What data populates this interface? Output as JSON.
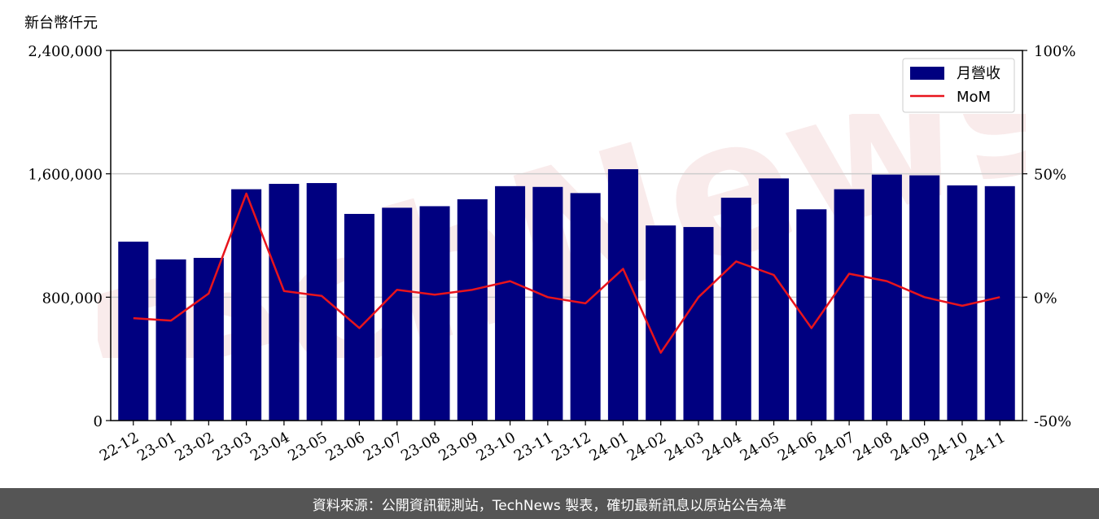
{
  "unit_label": "新台幣仟元",
  "footer_text": "資料來源：公開資訊觀測站，TechNews 製表，確切最新訊息以原站公告為準",
  "watermark_text": "TechNews",
  "colors": {
    "bar": "#000080",
    "line": "#e8141c",
    "grid": "#cccccc",
    "footer_bg": "#555555"
  },
  "chart_data": {
    "type": "bar",
    "categories": [
      "22-12",
      "23-01",
      "23-02",
      "23-03",
      "23-04",
      "23-05",
      "23-06",
      "23-07",
      "23-08",
      "23-09",
      "23-10",
      "23-11",
      "23-12",
      "24-01",
      "24-02",
      "24-03",
      "24-04",
      "24-05",
      "24-06",
      "24-07",
      "24-08",
      "24-09",
      "24-10",
      "24-11"
    ],
    "series": [
      {
        "name": "月營收",
        "type": "bar",
        "axis": "left",
        "values": [
          1160000,
          1045000,
          1055000,
          1500000,
          1535000,
          1540000,
          1340000,
          1380000,
          1390000,
          1435000,
          1520000,
          1515000,
          1475000,
          1630000,
          1265000,
          1255000,
          1445000,
          1570000,
          1370000,
          1500000,
          1595000,
          1590000,
          1525000,
          1520000
        ]
      },
      {
        "name": "MoM",
        "type": "line",
        "axis": "right",
        "unit": "%",
        "values": [
          -8.5,
          -9.5,
          1.5,
          42,
          2.5,
          0.5,
          -12.5,
          3,
          1,
          3,
          6.5,
          0,
          -2.5,
          11.5,
          -22.5,
          0,
          14.5,
          9,
          -12.5,
          9.5,
          6.5,
          0,
          -3.5,
          0
        ]
      }
    ],
    "left_axis": {
      "ylim": [
        0,
        2400000
      ],
      "ticks": [
        0,
        800000,
        1600000,
        2400000
      ],
      "tick_labels": [
        "0",
        "800,000",
        "1,600,000",
        "2,400,000"
      ]
    },
    "right_axis": {
      "ylim": [
        -50,
        100
      ],
      "ticks": [
        -50,
        0,
        50,
        100
      ],
      "tick_labels": [
        "-50%",
        "0%",
        "50%",
        "100%"
      ]
    },
    "grid": "horizontal",
    "legend_position": "top-right",
    "title": "",
    "xlabel": "",
    "ylabel": ""
  }
}
